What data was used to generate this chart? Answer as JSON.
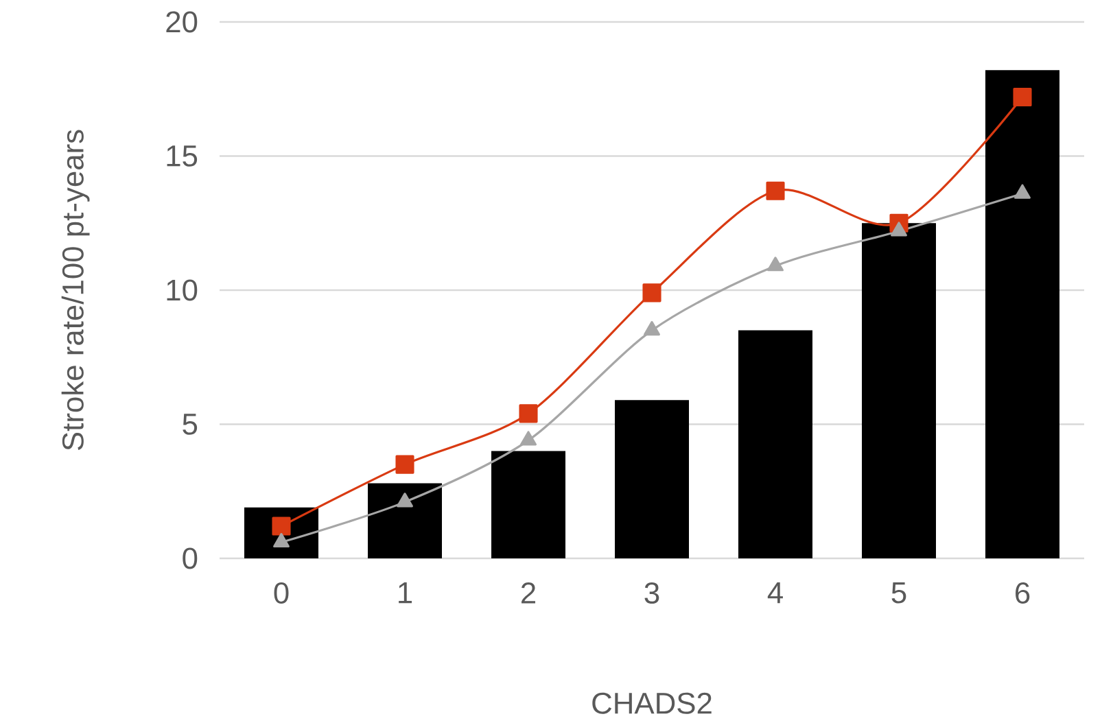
{
  "chart_data": {
    "type": "bar",
    "xlabel": "CHADS2",
    "ylabel": "Stroke rate/100 pt-years",
    "categories": [
      "0",
      "1",
      "2",
      "3",
      "4",
      "5",
      "6"
    ],
    "series": [
      {
        "color": "#000000",
        "values": [
          1.9,
          2.8,
          4.0,
          5.9,
          8.5,
          12.5,
          18.2
        ]
      },
      {
        "type": "line",
        "color": "#d93a12",
        "marker": "square",
        "values": [
          1.2,
          3.5,
          5.4,
          9.9,
          13.7,
          12.5,
          17.2
        ]
      },
      {
        "type": "line",
        "color": "#a6a6a6",
        "marker": "triangle",
        "values": [
          0.6,
          2.1,
          4.4,
          8.5,
          10.9,
          12.2,
          13.6
        ]
      }
    ],
    "ylim": [
      0,
      20
    ],
    "yticks": [
      0,
      5,
      10,
      15,
      20
    ],
    "grid": "y",
    "line_style": "solid"
  }
}
